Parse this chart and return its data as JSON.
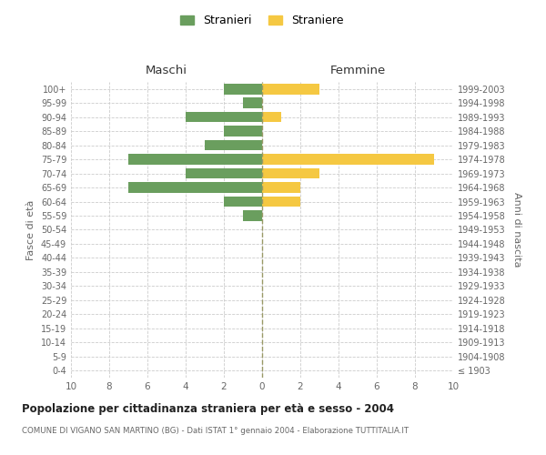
{
  "age_groups": [
    "0-4",
    "5-9",
    "10-14",
    "15-19",
    "20-24",
    "25-29",
    "30-34",
    "35-39",
    "40-44",
    "45-49",
    "50-54",
    "55-59",
    "60-64",
    "65-69",
    "70-74",
    "75-79",
    "80-84",
    "85-89",
    "90-94",
    "95-99",
    "100+"
  ],
  "birth_years": [
    "1999-2003",
    "1994-1998",
    "1989-1993",
    "1984-1988",
    "1979-1983",
    "1974-1978",
    "1969-1973",
    "1964-1968",
    "1959-1963",
    "1954-1958",
    "1949-1953",
    "1944-1948",
    "1939-1943",
    "1934-1938",
    "1929-1933",
    "1924-1928",
    "1919-1923",
    "1914-1918",
    "1909-1913",
    "1904-1908",
    "≤ 1903"
  ],
  "maschi": [
    2,
    1,
    4,
    2,
    3,
    7,
    4,
    7,
    2,
    1,
    0,
    0,
    0,
    0,
    0,
    0,
    0,
    0,
    0,
    0,
    0
  ],
  "femmine": [
    3,
    0,
    1,
    0,
    0,
    9,
    3,
    2,
    2,
    0,
    0,
    0,
    0,
    0,
    0,
    0,
    0,
    0,
    0,
    0,
    0
  ],
  "maschi_color": "#6a9e5e",
  "femmine_color": "#f5c842",
  "bg_color": "#ffffff",
  "grid_color": "#cccccc",
  "dashed_line_color": "#999966",
  "title": "Popolazione per cittadinanza straniera per età e sesso - 2004",
  "subtitle": "COMUNE DI VIGANO SAN MARTINO (BG) - Dati ISTAT 1° gennaio 2004 - Elaborazione TUTTITALIA.IT",
  "ylabel_left": "Fasce di età",
  "ylabel_right": "Anni di nascita",
  "xlabel_maschi": "Maschi",
  "xlabel_femmine": "Femmine",
  "legend_maschi": "Stranieri",
  "legend_femmine": "Straniere",
  "xlim": 10
}
